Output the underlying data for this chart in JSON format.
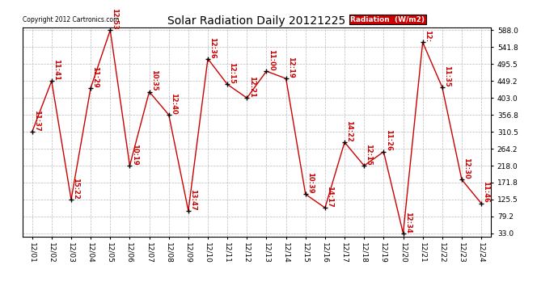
{
  "title": "Solar Radiation Daily 20121225",
  "copyright": "Copyright 2012 Cartronics.com",
  "legend_label": "Radiation  (W/m2)",
  "x_labels": [
    "12/01",
    "12/02",
    "12/03",
    "12/04",
    "12/05",
    "12/06",
    "12/07",
    "12/08",
    "12/09",
    "12/10",
    "12/11",
    "12/12",
    "12/13",
    "12/14",
    "12/15",
    "12/16",
    "12/17",
    "12/18",
    "12/19",
    "12/20",
    "12/21",
    "12/22",
    "12/23",
    "12/24"
  ],
  "y_values": [
    310.5,
    449.2,
    125.5,
    430.0,
    588.0,
    218.0,
    420.0,
    356.8,
    95.0,
    510.0,
    440.0,
    403.0,
    476.0,
    456.0,
    140.0,
    103.0,
    282.0,
    218.0,
    256.0,
    33.0,
    555.0,
    432.0,
    180.0,
    115.0
  ],
  "point_labels": [
    "11:37",
    "11:41",
    "15:22",
    "11:29",
    "12:53",
    "10:19",
    "10:35",
    "12:40",
    "13:47",
    "12:36",
    "12:15",
    "12:21",
    "11:00",
    "12:19",
    "10:39",
    "14:17",
    "14:22",
    "12:15",
    "11:26",
    "12:34",
    "12:",
    "11:35",
    "12:30",
    "11:46"
  ],
  "y_ticks": [
    33.0,
    79.2,
    125.5,
    171.8,
    218.0,
    264.2,
    310.5,
    356.8,
    403.0,
    449.2,
    495.5,
    541.8,
    588.0
  ],
  "y_min": 33.0,
  "y_max": 588.0,
  "line_color": "#cc0000",
  "marker_color": "#000000",
  "bg_color": "#ffffff",
  "grid_color": "#bbbbbb",
  "title_fontsize": 10,
  "label_fontsize": 6,
  "tick_fontsize": 6.5,
  "copyright_fontsize": 5.5,
  "legend_fontsize": 6.5,
  "legend_bg": "#cc0000",
  "legend_text_color": "#ffffff"
}
